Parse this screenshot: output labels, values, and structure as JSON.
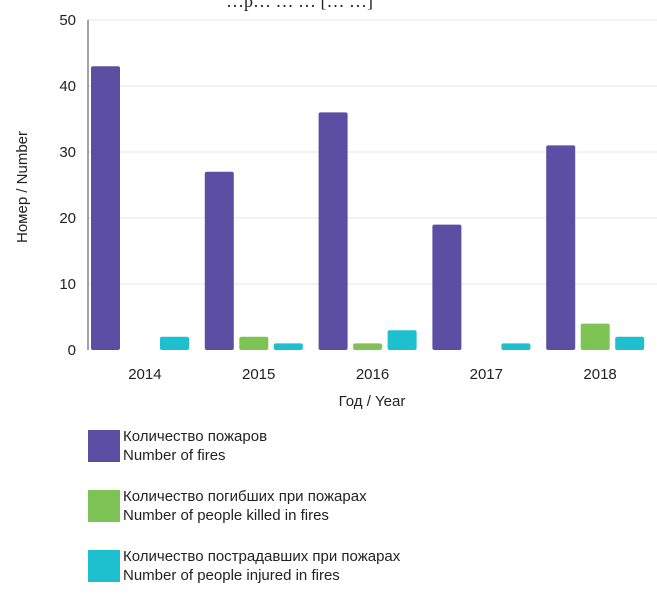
{
  "chart_data": {
    "type": "bar",
    "title": "…p… … … [… …]",
    "xlabel": "Год / Year",
    "ylabel": "Номер / Number",
    "ylim": [
      0,
      50
    ],
    "yticks": [
      0,
      10,
      20,
      30,
      40,
      50
    ],
    "categories": [
      "2014",
      "2015",
      "2016",
      "2017",
      "2018"
    ],
    "grid": true,
    "legend_position": "bottom",
    "series": [
      {
        "name": "Количество пожаров / Number of fires",
        "name_ru": "Количество пожаров",
        "name_en": "Number of fires",
        "color": "#5b4ea3",
        "values": [
          43,
          27,
          36,
          19,
          31
        ]
      },
      {
        "name": "Количество погибших при пожарах / Number of people killed in fires",
        "name_ru": "Количество погибших при пожарах",
        "name_en": "Number of people killed in fires",
        "color": "#7dc455",
        "values": [
          0,
          2,
          1,
          0,
          4
        ]
      },
      {
        "name": "Количество пострадавших при пожарах / Number of people injured in fires",
        "name_ru": "Количество пострадавших при пожарах",
        "name_en": "Number of people injured in fires",
        "color": "#1ebfce",
        "values": [
          2,
          1,
          3,
          1,
          2
        ]
      }
    ]
  }
}
